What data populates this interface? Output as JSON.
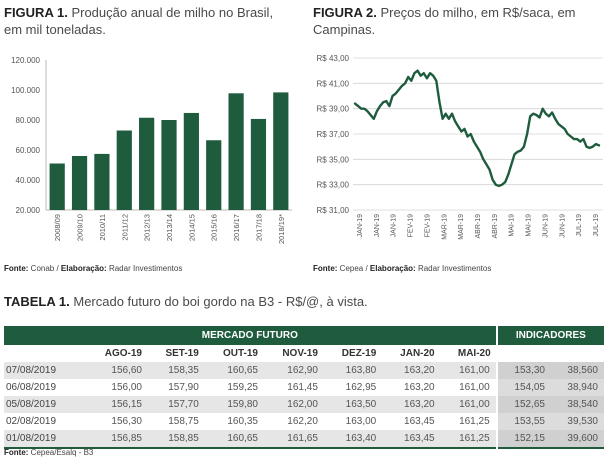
{
  "fig1": {
    "label": "FIGURA 1.",
    "title": "Produção anual de milho no Brasil, em mil toneladas.",
    "source_label": "Fonte:",
    "source": "Conab / ",
    "elab_label": "Elaboração:",
    "elab": "Radar Investimentos"
  },
  "fig2": {
    "label": "FIGURA 2.",
    "title": "Preços do milho, em R$/saca, em Campinas.",
    "source_label": "Fonte:",
    "source": "Cepea / ",
    "elab_label": "Elaboração:",
    "elab": "Radar Investimentos"
  },
  "chart_data": [
    {
      "type": "bar",
      "categories": [
        "2008/09",
        "2009/10",
        "2010/11",
        "2011/12",
        "2012/13",
        "2013/14",
        "2014/15",
        "2015/16",
        "2016/17",
        "2017/18",
        "2018/19*"
      ],
      "values": [
        51000,
        56000,
        57400,
        73000,
        81500,
        80000,
        84700,
        66500,
        97800,
        80700,
        98400
      ],
      "ylim": [
        20000,
        120000
      ],
      "yticks": [
        "20.000",
        "40.000",
        "60.000",
        "80.000",
        "100.000",
        "120.000"
      ],
      "ytick_values": [
        20000,
        40000,
        60000,
        80000,
        100000,
        120000
      ],
      "grid": false,
      "color": "#1f5c3e"
    },
    {
      "type": "line",
      "x_ticks": [
        "JAN-19",
        "JAN-19",
        "JAN-19",
        "FEV-19",
        "FEV-19",
        "MAR-19",
        "MAR-19",
        "ABR-19",
        "ABR-19",
        "MAI-19",
        "MAI-19",
        "JUN-19",
        "JUN-19",
        "JUL-19",
        "JUL-19"
      ],
      "yticks": [
        "R$ 31,00",
        "R$ 33,00",
        "R$ 35,00",
        "R$ 37,00",
        "R$ 39,00",
        "R$ 41,00",
        "R$ 43,00"
      ],
      "ytick_values": [
        31,
        33,
        35,
        37,
        39,
        41,
        43
      ],
      "ylim": [
        31,
        43
      ],
      "grid": true,
      "color": "#1f5c3e",
      "values": [
        39.4,
        39.2,
        39.0,
        39.0,
        38.8,
        38.5,
        38.2,
        38.8,
        39.2,
        39.5,
        39.6,
        39.2,
        40.0,
        40.2,
        40.5,
        40.8,
        41.0,
        41.5,
        41.2,
        41.8,
        42.0,
        41.6,
        41.8,
        41.4,
        41.8,
        41.6,
        41.2,
        39.5,
        38.2,
        38.6,
        38.2,
        38.6,
        38.0,
        37.6,
        37.2,
        37.4,
        36.8,
        37.0,
        36.4,
        36.0,
        35.6,
        35.0,
        34.6,
        34.2,
        33.4,
        33.0,
        32.9,
        33.0,
        33.2,
        33.8,
        34.6,
        35.4,
        35.6,
        35.7,
        36.0,
        37.0,
        38.4,
        38.6,
        38.5,
        38.3,
        39.0,
        38.6,
        38.4,
        38.7,
        38.2,
        37.8,
        37.6,
        37.4,
        37.0,
        36.8,
        36.6,
        36.6,
        36.4,
        36.6,
        36.0,
        35.9,
        36.0,
        36.2,
        36.1
      ]
    }
  ],
  "table": {
    "label": "TABELA 1.",
    "title": "Mercado futuro do boi gordo na B3 - R$/@, à vista.",
    "group_mercado": "MERCADO FUTURO",
    "group_indicadores": "INDICADORES",
    "columns": [
      "AGO-19",
      "SET-19",
      "OUT-19",
      "NOV-19",
      "DEZ-19",
      "JAN-20",
      "MAI-20"
    ],
    "rows": [
      {
        "date": "07/08/2019",
        "values": [
          "156,60",
          "158,35",
          "160,65",
          "162,90",
          "163,80",
          "163,20",
          "161,00"
        ],
        "ind": [
          "153,30",
          "38,560"
        ]
      },
      {
        "date": "06/08/2019",
        "values": [
          "156,00",
          "157,90",
          "159,25",
          "161,45",
          "162,95",
          "163,20",
          "161,00"
        ],
        "ind": [
          "154,05",
          "38,940"
        ]
      },
      {
        "date": "05/08/2019",
        "values": [
          "156,15",
          "157,70",
          "159,80",
          "162,00",
          "163,50",
          "163,20",
          "161,00"
        ],
        "ind": [
          "152,65",
          "38,540"
        ]
      },
      {
        "date": "02/08/2019",
        "values": [
          "156,30",
          "158,75",
          "160,35",
          "162,20",
          "163,00",
          "163,45",
          "161,25"
        ],
        "ind": [
          "153,55",
          "39,530"
        ]
      },
      {
        "date": "01/08/2019",
        "values": [
          "156,85",
          "158,85",
          "160,65",
          "161,65",
          "163,40",
          "163,45",
          "161,25"
        ],
        "ind": [
          "152,15",
          "39,600"
        ]
      }
    ],
    "source_label": "Fonte:",
    "source": "Cepea/Esalq - B3"
  }
}
